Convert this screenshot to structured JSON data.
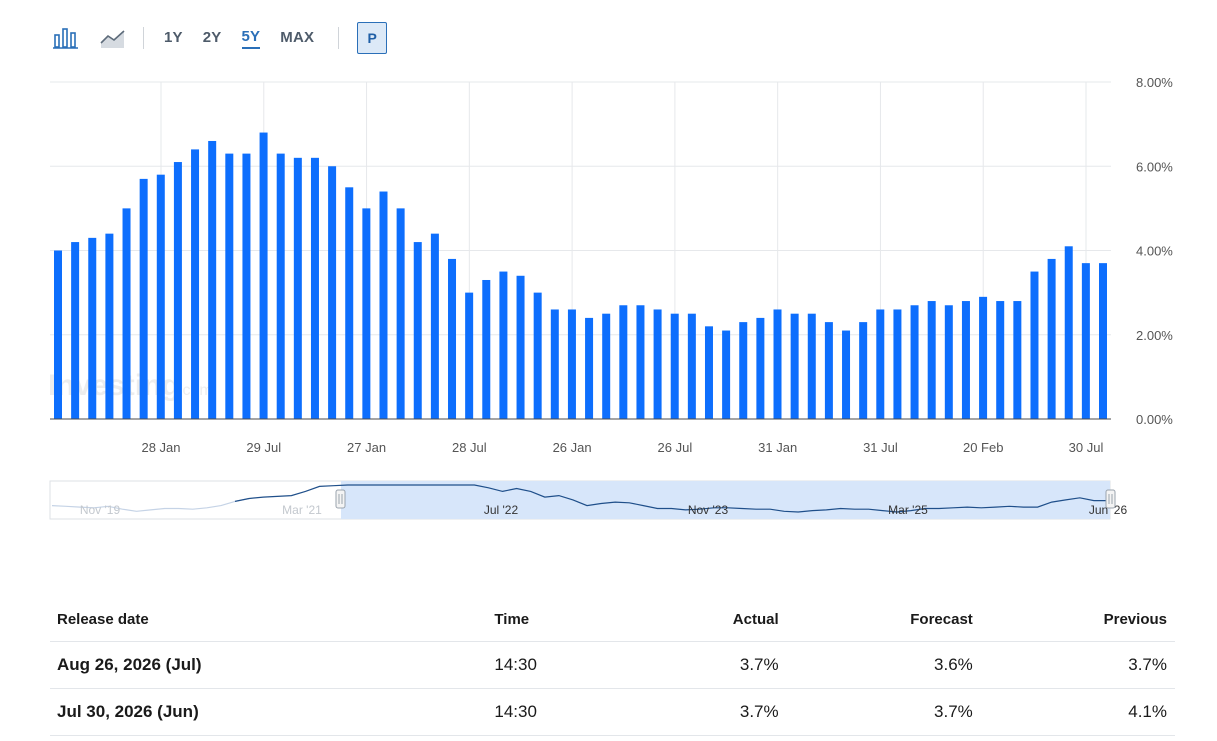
{
  "toolbar": {
    "bar_icon": "bar-chart-icon",
    "line_icon": "line-chart-icon",
    "ranges": [
      "1Y",
      "2Y",
      "5Y",
      "MAX"
    ],
    "active_range": "5Y",
    "p_label": "P"
  },
  "watermark": "Investing",
  "watermark_suffix": ".com",
  "chart_data": {
    "type": "bar",
    "color": "#0d6efd",
    "grid": true,
    "ylim": [
      0,
      8
    ],
    "y_ticks": [
      "8.00%",
      "6.00%",
      "4.00%",
      "2.00%",
      "0.00%"
    ],
    "x_tick_labels": [
      "28 Jan",
      "29 Jul",
      "27 Jan",
      "28 Jul",
      "26 Jan",
      "26 Jul",
      "31 Jan",
      "31 Jul",
      "20 Feb",
      "30 Jul"
    ],
    "values": [
      4.0,
      4.2,
      4.3,
      4.4,
      5.0,
      5.7,
      5.8,
      6.1,
      6.4,
      6.6,
      6.3,
      6.3,
      6.8,
      6.3,
      6.2,
      6.2,
      6.0,
      5.5,
      5.0,
      5.4,
      5.0,
      4.2,
      4.4,
      3.8,
      3.0,
      3.3,
      3.5,
      3.4,
      3.0,
      2.6,
      2.6,
      2.4,
      2.5,
      2.7,
      2.7,
      2.6,
      2.5,
      2.5,
      2.2,
      2.1,
      2.3,
      2.4,
      2.6,
      2.5,
      2.5,
      2.3,
      2.1,
      2.3,
      2.6,
      2.6,
      2.7,
      2.8,
      2.7,
      2.8,
      2.9,
      2.8,
      2.8,
      3.5,
      3.8,
      4.1,
      3.7,
      3.7
    ]
  },
  "navigator": {
    "labels": [
      "Nov '19",
      "Mar '21",
      "Jul '22",
      "Nov '23",
      "Mar '25",
      "Jun '26"
    ]
  },
  "table": {
    "headers": {
      "release_date": "Release date",
      "time": "Time",
      "actual": "Actual",
      "forecast": "Forecast",
      "previous": "Previous"
    },
    "rows": [
      {
        "release_date": "Aug 26, 2026 (Jul)",
        "time": "14:30",
        "actual": "3.7%",
        "forecast": "3.6%",
        "previous": "3.7%"
      },
      {
        "release_date": "Jul 30, 2026 (Jun)",
        "time": "14:30",
        "actual": "3.7%",
        "forecast": "3.7%",
        "previous": "4.1%"
      }
    ]
  }
}
